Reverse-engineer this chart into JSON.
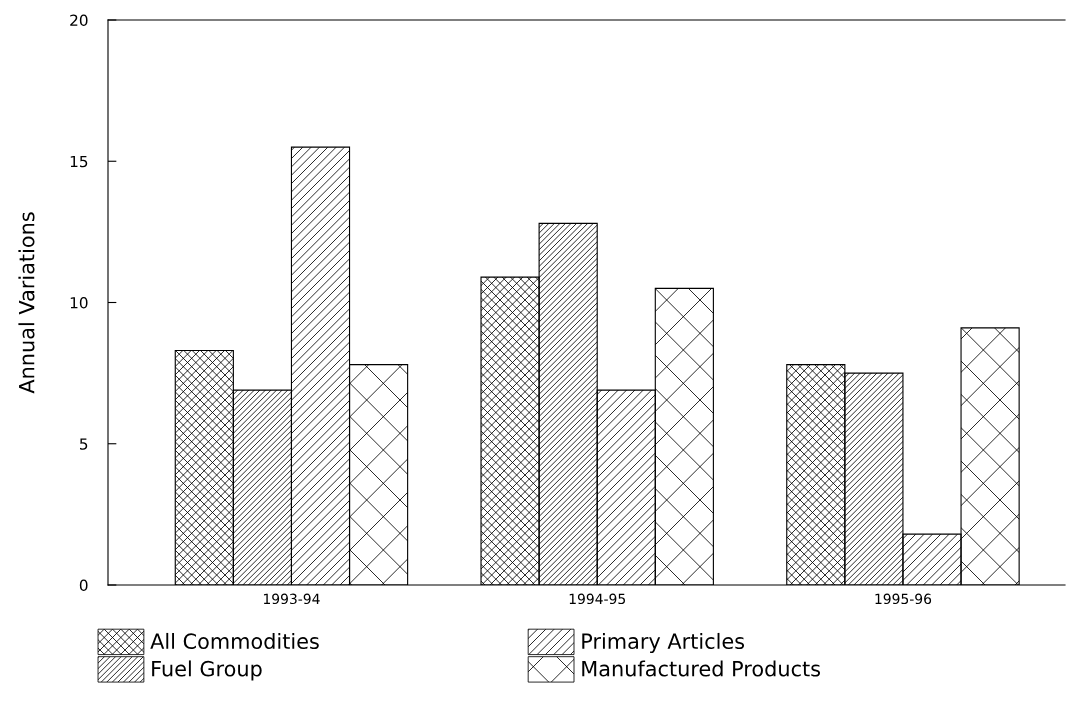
{
  "chart_data": {
    "type": "bar",
    "ylabel": "Annual Variations",
    "categories": [
      "1993-94",
      "1994-95",
      "1995-96"
    ],
    "series": [
      {
        "name": "All Commodities",
        "color": "#000000",
        "values": [
          8.3,
          10.9,
          7.8
        ]
      },
      {
        "name": "Fuel Group",
        "color": "#000000",
        "values": [
          6.9,
          12.8,
          7.5
        ]
      },
      {
        "name": "Primary Articles",
        "color": "#000000",
        "values": [
          15.5,
          6.9,
          1.8
        ]
      },
      {
        "name": "Manufactured Products",
        "color": "#000000",
        "values": [
          7.8,
          10.5,
          9.1
        ]
      }
    ],
    "ylim": [
      0,
      20
    ],
    "yticks": [
      0,
      5,
      10,
      15,
      20
    ],
    "grid": false,
    "legend": "bottom"
  }
}
